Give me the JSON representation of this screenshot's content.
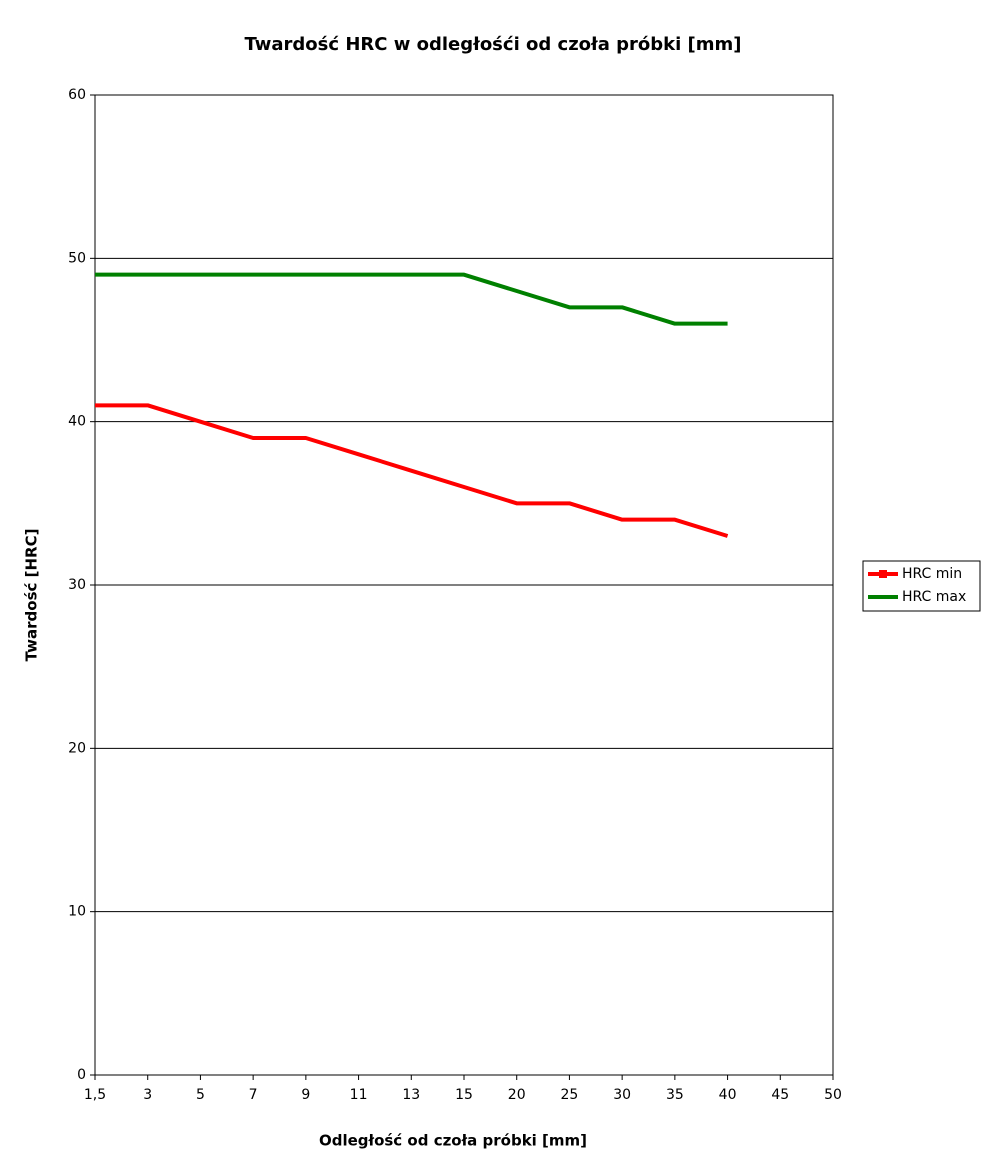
{
  "chart_data": {
    "type": "line",
    "title": "Twardość HRC w odległośći od czoła próbki [mm]",
    "x_label": "Odległość od czoła próbki [mm]",
    "y_label": "Twardość [HRC]",
    "categories": [
      "1,5",
      "3",
      "5",
      "7",
      "9",
      "11",
      "13",
      "15",
      "20",
      "25",
      "30",
      "35",
      "40",
      "45",
      "50"
    ],
    "series": [
      {
        "name": "HRC min",
        "color": "#ff0000",
        "values": [
          41,
          41,
          40,
          39,
          39,
          38,
          37,
          36,
          35,
          35,
          34,
          34,
          33,
          null,
          null
        ]
      },
      {
        "name": "HRC max",
        "color": "#008000",
        "values": [
          49,
          49,
          49,
          49,
          49,
          49,
          49,
          49,
          48,
          47,
          47,
          46,
          46,
          null,
          null
        ]
      }
    ],
    "ylim": [
      0,
      60
    ],
    "yticks": [
      0,
      10,
      20,
      30,
      40,
      50,
      60
    ],
    "grid": true,
    "legend": "right"
  }
}
